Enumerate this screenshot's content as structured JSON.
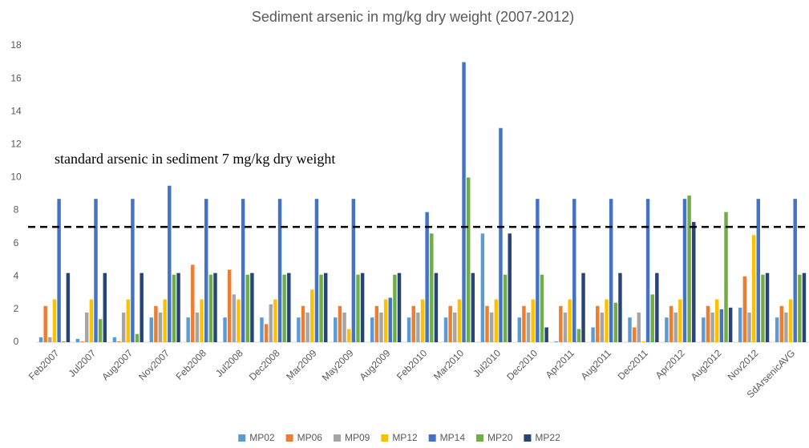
{
  "chart_data": {
    "type": "bar",
    "title": "Sediment arsenic in mg/kg dry weight  (2007-2012)",
    "categories": [
      "Feb2007",
      "Jul2007",
      "Aug2007",
      "Nov2007",
      "Feb2008",
      "Jul2008",
      "Dec2008",
      "Mar2009",
      "May2009",
      "Aug2009",
      "Feb2010",
      "Mar2010",
      "Jul2010",
      "Dec2010",
      "Apr2011",
      "Aug2011",
      "Dec2011",
      "Apr2012",
      "Aug2012",
      "Nov2012",
      "SdArsenicAVG"
    ],
    "series": [
      {
        "name": "MP02",
        "color": "#5b9bd5",
        "values": [
          0.3,
          0.2,
          0.3,
          1.5,
          1.5,
          1.5,
          1.5,
          1.5,
          1.5,
          1.5,
          1.5,
          1.5,
          6.6,
          1.5,
          0.05,
          0.9,
          1.5,
          1.5,
          1.5,
          2.1,
          1.5
        ]
      },
      {
        "name": "MP06",
        "color": "#ed7d31",
        "values": [
          2.2,
          0.05,
          0.05,
          2.2,
          4.7,
          4.4,
          1.1,
          2.2,
          2.2,
          2.2,
          2.2,
          2.2,
          2.2,
          2.2,
          2.2,
          2.2,
          0.9,
          2.2,
          2.2,
          4.0,
          2.2
        ]
      },
      {
        "name": "MP09",
        "color": "#a5a5a5",
        "values": [
          0.3,
          1.8,
          1.8,
          1.8,
          1.8,
          2.9,
          2.3,
          1.8,
          1.8,
          1.8,
          1.8,
          1.8,
          1.8,
          1.8,
          1.8,
          1.8,
          1.8,
          1.8,
          1.8,
          1.8,
          1.8
        ]
      },
      {
        "name": "MP12",
        "color": "#ffc000",
        "values": [
          2.6,
          2.6,
          2.6,
          2.6,
          2.6,
          2.6,
          2.6,
          3.2,
          0.8,
          2.6,
          2.6,
          2.6,
          2.6,
          2.6,
          2.6,
          2.6,
          0.05,
          2.6,
          2.6,
          6.5,
          2.6
        ]
      },
      {
        "name": "MP14",
        "color": "#4472c4",
        "values": [
          8.7,
          8.7,
          8.7,
          9.5,
          8.7,
          8.7,
          8.7,
          8.7,
          8.7,
          2.7,
          7.9,
          17,
          13,
          8.7,
          8.7,
          8.7,
          8.7,
          8.7,
          2.0,
          8.7,
          8.7
        ]
      },
      {
        "name": "MP20",
        "color": "#70ad47",
        "values": [
          0.05,
          1.4,
          0.5,
          4.1,
          4.1,
          4.1,
          4.1,
          4.1,
          4.1,
          4.1,
          6.6,
          10,
          4.1,
          4.1,
          0.8,
          2.4,
          2.9,
          8.9,
          7.9,
          4.1,
          4.1
        ]
      },
      {
        "name": "MP22",
        "color": "#264478",
        "values": [
          4.2,
          4.2,
          4.2,
          4.2,
          4.2,
          4.2,
          4.2,
          4.2,
          4.2,
          4.2,
          4.2,
          4.2,
          6.6,
          0.9,
          4.2,
          4.2,
          4.2,
          7.3,
          2.1,
          4.2,
          4.2
        ]
      }
    ],
    "ylim": [
      0,
      18
    ],
    "yticks": [
      0,
      2,
      4,
      6,
      8,
      10,
      12,
      14,
      16,
      18
    ],
    "grid": false,
    "reference_line": {
      "value": 7,
      "label": "standard arsenic in sediment 7 mg/kg dry weight"
    },
    "legend": "bottom"
  }
}
